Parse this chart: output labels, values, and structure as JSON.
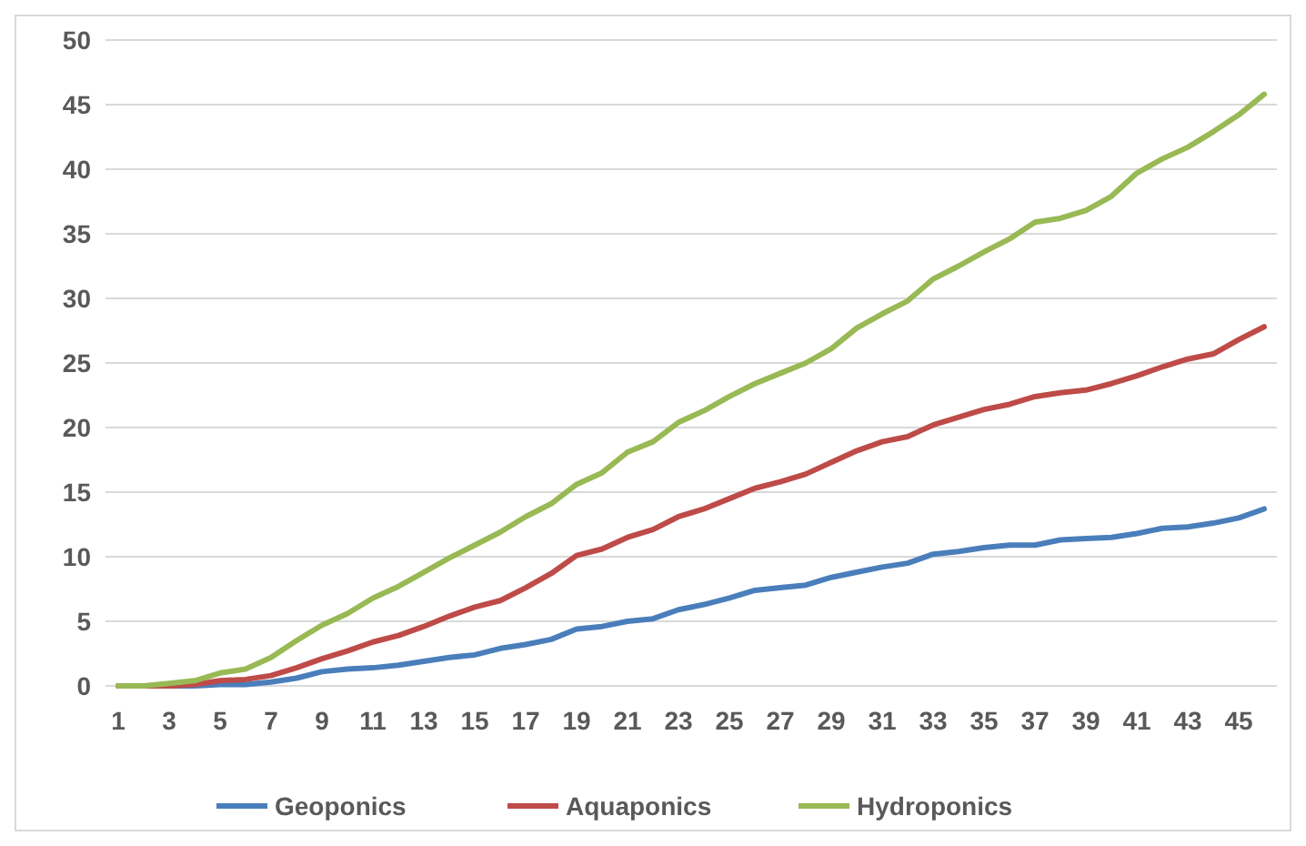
{
  "chart_data": {
    "type": "line",
    "x": [
      1,
      2,
      3,
      4,
      5,
      6,
      7,
      8,
      9,
      10,
      11,
      12,
      13,
      14,
      15,
      16,
      17,
      18,
      19,
      20,
      21,
      22,
      23,
      24,
      25,
      26,
      27,
      28,
      29,
      30,
      31,
      32,
      33,
      34,
      35,
      36,
      37,
      38,
      39,
      40,
      41,
      42,
      43,
      44,
      45,
      46
    ],
    "xlim": [
      0.5,
      46.5
    ],
    "xticks": [
      1,
      3,
      5,
      7,
      9,
      11,
      13,
      15,
      17,
      19,
      21,
      23,
      25,
      27,
      29,
      31,
      33,
      35,
      37,
      39,
      41,
      43,
      45
    ],
    "series": [
      {
        "name": "Geoponics",
        "color": "#4a7ebb",
        "values": [
          0,
          0,
          0,
          0,
          0.1,
          0.1,
          0.3,
          0.6,
          1.1,
          1.3,
          1.4,
          1.6,
          1.9,
          2.2,
          2.4,
          2.9,
          3.2,
          3.6,
          4.4,
          4.6,
          5.0,
          5.2,
          5.9,
          6.3,
          6.8,
          7.4,
          7.6,
          7.8,
          8.4,
          8.8,
          9.2,
          9.5,
          10.2,
          10.4,
          10.7,
          10.9,
          10.9,
          11.3,
          11.4,
          11.5,
          11.8,
          12.2,
          12.3,
          12.6,
          13.0,
          13.7
        ]
      },
      {
        "name": "Aquaponics",
        "color": "#be4b48",
        "values": [
          0,
          0,
          0,
          0.1,
          0.4,
          0.5,
          0.8,
          1.4,
          2.1,
          2.7,
          3.4,
          3.9,
          4.6,
          5.4,
          6.1,
          6.6,
          7.6,
          8.7,
          10.1,
          10.6,
          11.5,
          12.1,
          13.1,
          13.7,
          14.5,
          15.3,
          15.8,
          16.4,
          17.3,
          18.2,
          18.9,
          19.3,
          20.2,
          20.8,
          21.4,
          21.8,
          22.4,
          22.7,
          22.9,
          23.4,
          24.0,
          24.7,
          25.3,
          25.7,
          26.8,
          27.8
        ]
      },
      {
        "name": "Hydroponics",
        "color": "#98b954",
        "values": [
          0,
          0,
          0.2,
          0.4,
          1.0,
          1.3,
          2.2,
          3.5,
          4.7,
          5.6,
          6.8,
          7.7,
          8.8,
          9.9,
          10.9,
          11.9,
          13.1,
          14.1,
          15.6,
          16.5,
          18.1,
          18.9,
          20.4,
          21.3,
          22.4,
          23.4,
          24.2,
          25.0,
          26.1,
          27.7,
          28.8,
          29.8,
          31.5,
          32.5,
          33.6,
          34.6,
          35.9,
          36.2,
          36.8,
          37.9,
          39.7,
          40.8,
          41.7,
          42.9,
          44.2,
          45.8
        ]
      }
    ],
    "ylim": [
      0,
      50
    ],
    "yticks": [
      0,
      5,
      10,
      15,
      20,
      25,
      30,
      35,
      40,
      45,
      50
    ],
    "grid": "y",
    "legend": "bottom",
    "marker": "none",
    "line_style": "solid"
  }
}
